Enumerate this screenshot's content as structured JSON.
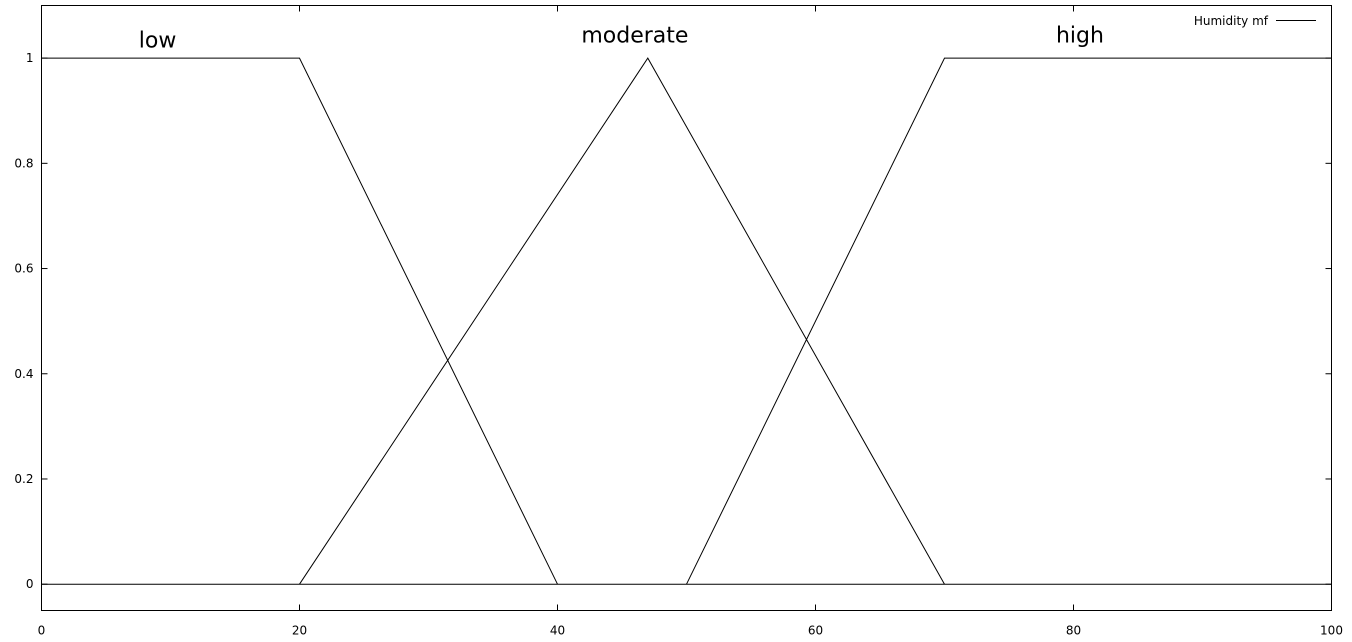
{
  "chart_data": {
    "type": "line",
    "title": "",
    "xlabel": "",
    "ylabel": "",
    "xlim": [
      0,
      100
    ],
    "ylim": [
      -0.05,
      1.1
    ],
    "x_ticks": [
      0,
      20,
      40,
      60,
      80,
      100
    ],
    "y_ticks": [
      0,
      0.2,
      0.4,
      0.6,
      0.8,
      1
    ],
    "x_tick_labels": [
      "0",
      "20",
      "40",
      "60",
      "80",
      "100"
    ],
    "y_tick_labels": [
      "0",
      "0.2",
      "0.4",
      "0.6",
      "0.8",
      "1"
    ],
    "grid": false,
    "legend": {
      "position": "top-right",
      "entries": [
        "Humidity mf"
      ]
    },
    "baseline": {
      "y": 0
    },
    "series": [
      {
        "name": "low",
        "shape": "trapezoid",
        "points": [
          [
            0,
            1
          ],
          [
            20,
            1
          ],
          [
            40,
            0
          ]
        ]
      },
      {
        "name": "moderate",
        "shape": "triangle",
        "points": [
          [
            20,
            0
          ],
          [
            47,
            1
          ],
          [
            70,
            0
          ]
        ]
      },
      {
        "name": "high",
        "shape": "trapezoid",
        "points": [
          [
            50,
            0
          ],
          [
            70,
            1
          ],
          [
            100,
            1
          ]
        ]
      }
    ],
    "annotations": [
      {
        "text": "low",
        "x": 9,
        "y": 1.02
      },
      {
        "text": "moderate",
        "x": 46,
        "y": 1.03
      },
      {
        "text": "high",
        "x": 80.5,
        "y": 1.03
      }
    ],
    "colors": {
      "line": "#000000",
      "background": "#ffffff"
    }
  }
}
